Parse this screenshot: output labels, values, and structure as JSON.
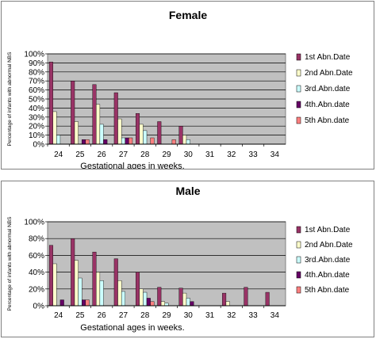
{
  "colors": {
    "plot_bg": "#c0c0c0",
    "series": [
      "#993366",
      "#ffffcc",
      "#ccffff",
      "#660066",
      "#ff8080"
    ]
  },
  "chart_data": [
    {
      "type": "bar",
      "title": "Female",
      "xlabel": "Gestational ages in weeks.",
      "ylabel": "Percentage of infants with abnormal NBS",
      "categories": [
        "24",
        "25",
        "26",
        "27",
        "28",
        "29",
        "30",
        "31",
        "32",
        "33",
        "34"
      ],
      "yticks": [
        "0%",
        "10%",
        "20%",
        "30%",
        "40%",
        "50%",
        "60%",
        "70%",
        "80%",
        "90%",
        "100%"
      ],
      "ylim": [
        0,
        100
      ],
      "grid": true,
      "legend": "right",
      "series": [
        {
          "name": "1st Abn.Date",
          "values": [
            91,
            70,
            66,
            57,
            34,
            25,
            20,
            0,
            0,
            0,
            0
          ]
        },
        {
          "name": "2nd Abn.Date",
          "values": [
            36,
            25,
            44,
            28,
            22,
            0,
            10,
            0,
            0,
            0,
            0
          ]
        },
        {
          "name": "3rd.Abn.date",
          "values": [
            10,
            0,
            22,
            7,
            15,
            0,
            5,
            0,
            0,
            0,
            0
          ]
        },
        {
          "name": "4th.Abn.date",
          "values": [
            0,
            5,
            5,
            7,
            0,
            0,
            0,
            0,
            0,
            0,
            0
          ]
        },
        {
          "name": "5th Abn.date",
          "values": [
            0,
            5,
            0,
            7,
            7,
            5,
            0,
            0,
            0,
            0,
            0
          ]
        }
      ]
    },
    {
      "type": "bar",
      "title": "Male",
      "xlabel": "Gestational ages in weeks.",
      "ylabel": "Percentage of infants with abnormal NBS",
      "categories": [
        "24",
        "25",
        "26",
        "27",
        "28",
        "29",
        "30",
        "31",
        "32",
        "33",
        "34"
      ],
      "yticks": [
        "0%",
        "20%",
        "40%",
        "60%",
        "80%",
        "100%"
      ],
      "ylim": [
        0,
        100
      ],
      "grid": true,
      "legend": "right",
      "series": [
        {
          "name": "1st Abn.Date",
          "values": [
            72,
            80,
            64,
            56,
            40,
            22,
            21,
            0,
            15,
            22,
            16
          ]
        },
        {
          "name": "2nd Abn.Date",
          "values": [
            50,
            54,
            40,
            30,
            20,
            5,
            15,
            0,
            5,
            0,
            0
          ]
        },
        {
          "name": "3rd.Abn.date",
          "values": [
            0,
            33,
            30,
            17,
            16,
            3,
            9,
            0,
            0,
            0,
            0
          ]
        },
        {
          "name": "4th.Abn.date",
          "values": [
            7,
            7,
            0,
            0,
            9,
            0,
            5,
            0,
            0,
            0,
            0
          ]
        },
        {
          "name": "5th Abn.date",
          "values": [
            0,
            7,
            0,
            0,
            5,
            0,
            0,
            0,
            0,
            0,
            0
          ]
        }
      ]
    }
  ]
}
